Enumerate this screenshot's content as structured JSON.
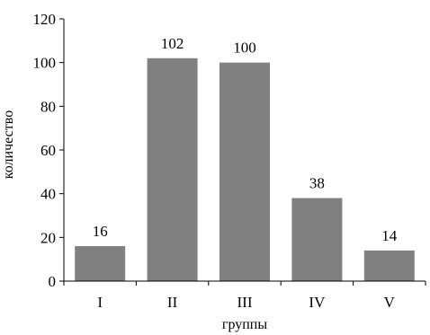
{
  "chart_data": {
    "type": "bar",
    "title": "",
    "xlabel": "группы",
    "ylabel": "количество",
    "categories": [
      "I",
      "II",
      "III",
      "IV",
      "V"
    ],
    "values": [
      16,
      102,
      100,
      38,
      14
    ],
    "data_labels": [
      "16",
      "102",
      "100",
      "38",
      "14"
    ],
    "ylim": [
      0,
      120
    ],
    "yticks": [
      0,
      20,
      40,
      60,
      80,
      100,
      120
    ],
    "grid": false,
    "legend": "none",
    "bar_color": "#808080"
  }
}
